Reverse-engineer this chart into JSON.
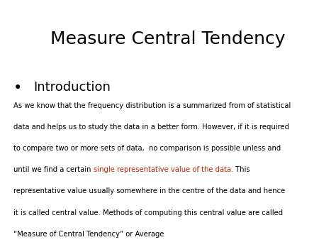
{
  "title": "Measure Central Tendency",
  "title_fontsize": 18,
  "title_color": "#000000",
  "background_color": "#ffffff",
  "bullet_header": "Introduction",
  "bullet_header_fontsize": 13,
  "bullet_header_color": "#000000",
  "body_fontsize": 7.2,
  "body_color": "#000000",
  "highlight_color": "#cc2200",
  "body_line1": "As we know that the frequency distribution is a summarized from of statistical",
  "body_line2": "data and helps us to study the data in a better form. However, if it is required",
  "body_line3": "to compare two or more sets of data,  no comparison is possible unless and",
  "body_line4_before": "until we find a certain ",
  "body_line4_highlight": "single representative value of the data.",
  "body_line4_after": " This",
  "body_line5": "representative value usually somewhere in the centre of the data and hence",
  "body_line6": "it is called central value. Methods of computing this central value are called",
  "body_line7": "“Measure of Central Tendency” or Average",
  "fig_width": 4.74,
  "fig_height": 3.55,
  "dpi": 100
}
